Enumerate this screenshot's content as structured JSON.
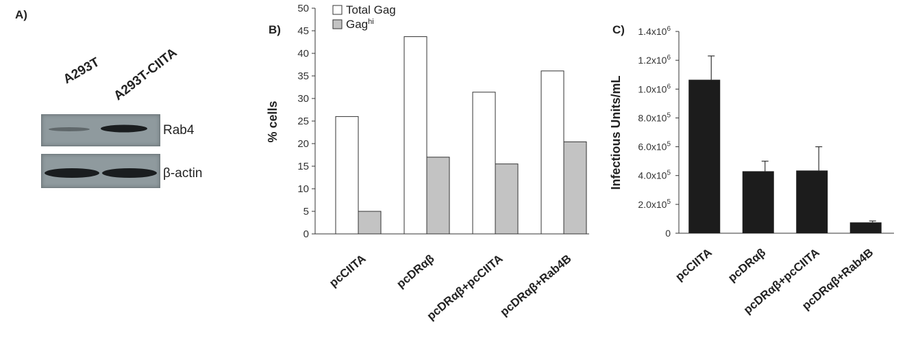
{
  "panel_a": {
    "letter": "A)",
    "lanes": [
      "A293T",
      "A293T-CIITA"
    ],
    "bands": [
      "Rab4",
      "β-actin"
    ]
  },
  "panel_b": {
    "letter": "B)"
  },
  "panel_c": {
    "letter": "C)"
  },
  "chart_data": [
    {
      "type": "bar",
      "title": "",
      "xlabel": "",
      "ylabel": "% cells",
      "ylim": [
        0,
        50
      ],
      "yticks": [
        0,
        5,
        10,
        15,
        20,
        25,
        30,
        35,
        40,
        45,
        50
      ],
      "legend_position": "top-left",
      "grid": false,
      "categories": [
        "pcCIITA",
        "pcDRαβ",
        "pcDRαβ+pcCIITA",
        "pcDRαβ+Rab4B"
      ],
      "series": [
        {
          "name": "Total Gag",
          "values": [
            26,
            43.7,
            31.4,
            36.1
          ],
          "color": "#ffffff"
        },
        {
          "name": "Gag",
          "name_sup": "hi",
          "values": [
            5,
            17,
            15.5,
            20.4
          ],
          "color": "#c3c3c3"
        }
      ]
    },
    {
      "type": "bar",
      "title": "",
      "xlabel": "",
      "ylabel": "Infectious Units/mL",
      "ylim": [
        0,
        1400000
      ],
      "yticks": [
        "0",
        "2.0x10",
        "4.0x10",
        "6.0x10",
        "8.0x10",
        "1.0x10",
        "1.2x10",
        "1.4x10"
      ],
      "ytick_exponents": [
        "",
        "5",
        "5",
        "5",
        "5",
        "6",
        "6",
        "6"
      ],
      "ytick_values": [
        0,
        200000,
        400000,
        600000,
        800000,
        1000000,
        1200000,
        1400000
      ],
      "grid": false,
      "categories": [
        "pcCIITA",
        "pcDRαβ",
        "pcDRαβ+pcCIITA",
        "pcDRαβ+Rab4B"
      ],
      "series": [
        {
          "values": [
            1065000,
            430000,
            435000,
            75000
          ],
          "errors": [
            165000,
            70000,
            165000,
            10000
          ],
          "color": "#1c1c1c"
        }
      ]
    }
  ]
}
